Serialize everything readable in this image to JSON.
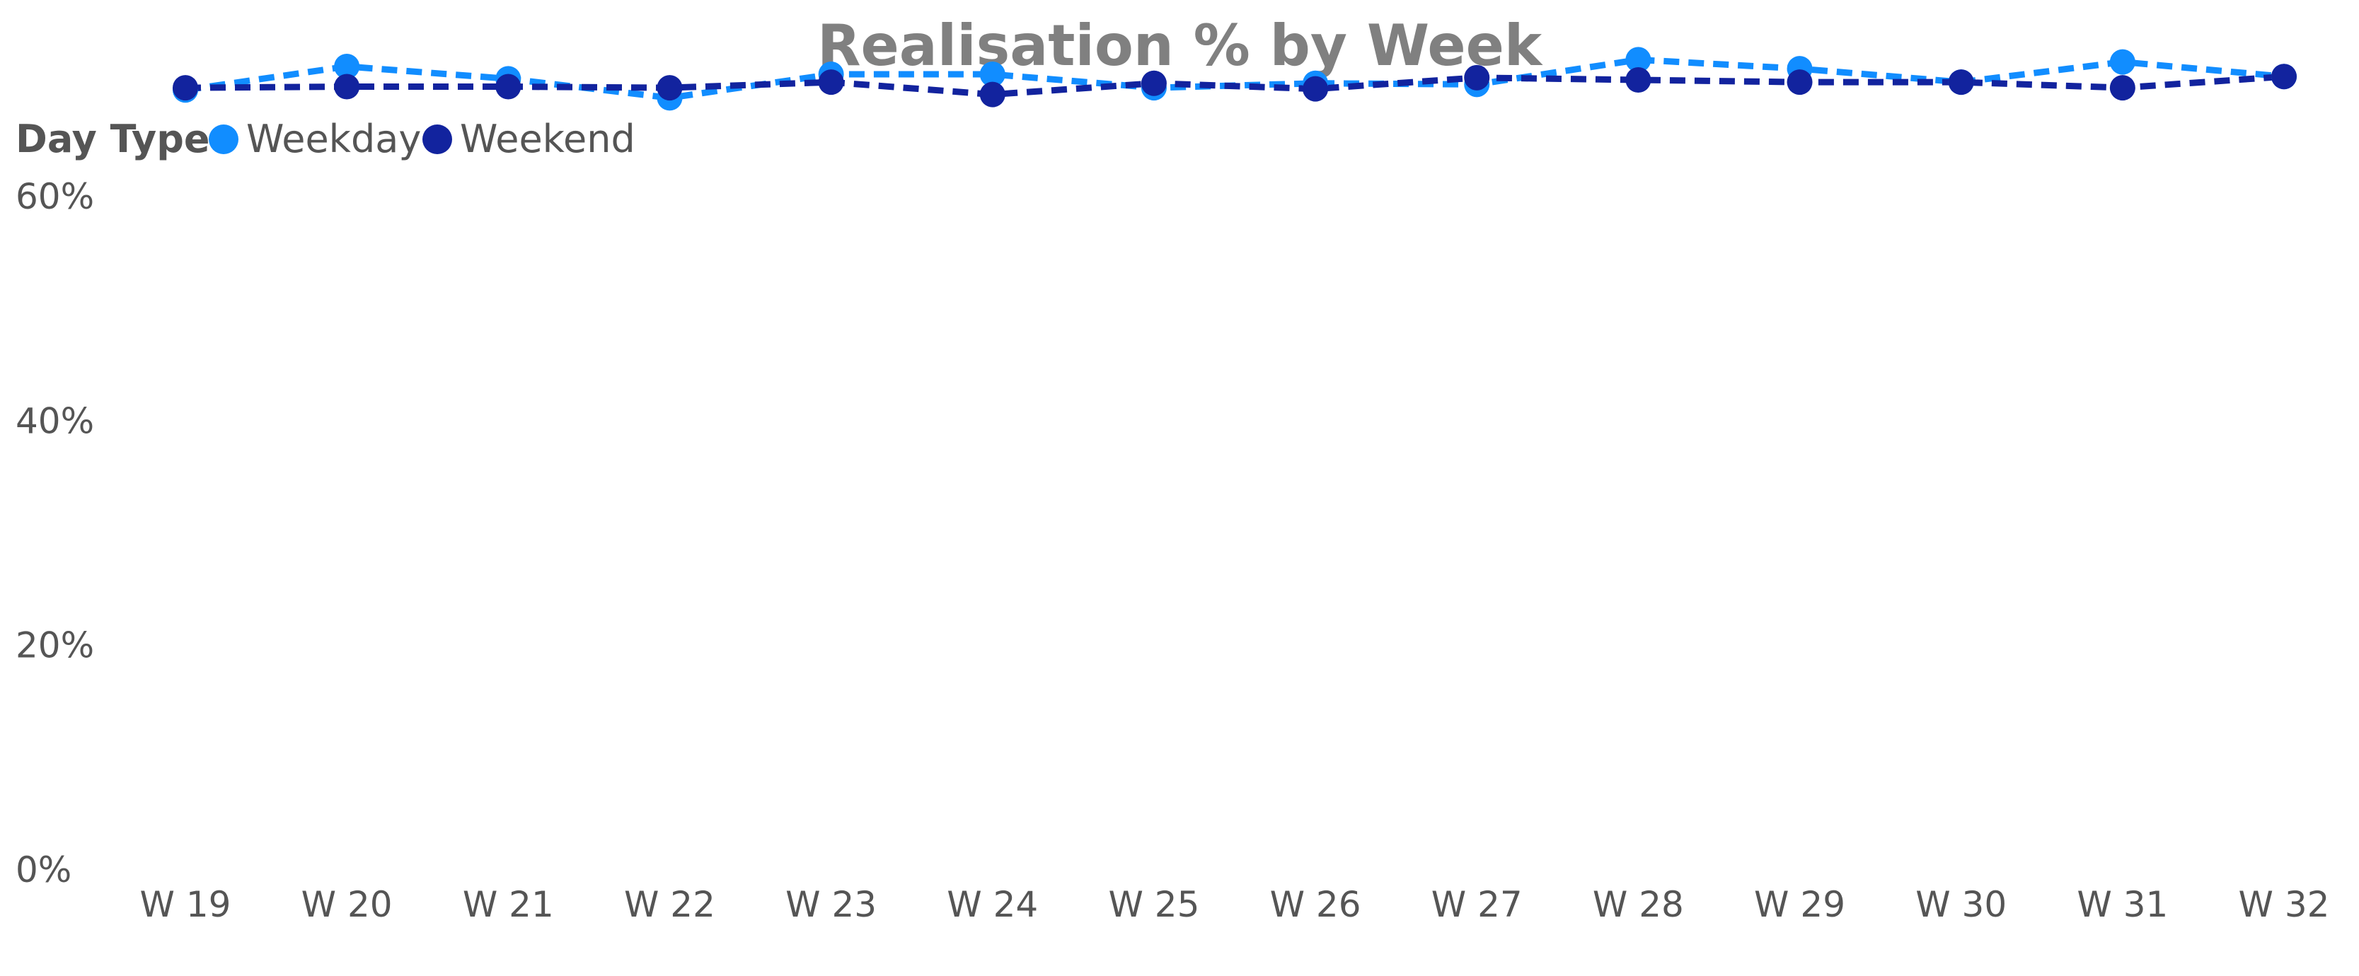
{
  "chart_data": {
    "type": "line",
    "title": "Realisation % by Week",
    "legend": {
      "title": "Day Type",
      "position": "top-left"
    },
    "categories": [
      "W 19",
      "W 20",
      "W 21",
      "W 22",
      "W 23",
      "W 24",
      "W 25",
      "W 26",
      "W 27",
      "W 28",
      "W 29",
      "W 30",
      "W 31",
      "W 32"
    ],
    "y_ticks": [
      "0%",
      "20%",
      "40%",
      "60%"
    ],
    "ylim": [
      0,
      0.75
    ],
    "grid": false,
    "series": [
      {
        "name": "Weekday",
        "color": "#118DFF",
        "line_style": "dashed",
        "values": [
          0.695,
          0.716,
          0.705,
          0.688,
          0.709,
          0.709,
          0.697,
          0.701,
          0.7,
          0.722,
          0.714,
          0.702,
          0.72,
          0.707
        ]
      },
      {
        "name": "Weekend",
        "color": "#12239E",
        "line_style": "dashed",
        "values": [
          0.697,
          0.698,
          0.698,
          0.697,
          0.702,
          0.691,
          0.701,
          0.696,
          0.706,
          0.704,
          0.702,
          0.702,
          0.697,
          0.707
        ]
      }
    ]
  }
}
